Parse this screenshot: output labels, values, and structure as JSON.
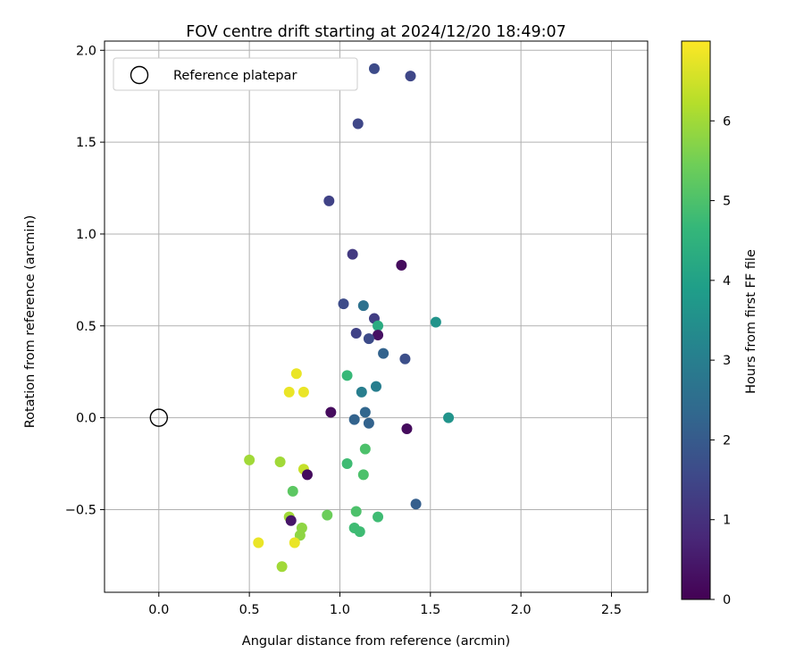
{
  "chart_data": {
    "type": "scatter",
    "title": "FOV centre drift starting at 2024/12/20 18:49:07",
    "xlabel": "Angular distance from reference (arcmin)",
    "ylabel": "Rotation from reference (arcmin)",
    "xlim": [
      -0.3,
      2.7
    ],
    "ylim": [
      -0.95,
      2.05
    ],
    "xticks": [
      0.0,
      0.5,
      1.0,
      1.5,
      2.0,
      2.5
    ],
    "xtick_labels": [
      "0.0",
      "0.5",
      "1.0",
      "1.5",
      "2.0",
      "2.5"
    ],
    "yticks": [
      -0.5,
      0.0,
      0.5,
      1.0,
      1.5,
      2.0
    ],
    "ytick_labels": [
      "−0.5",
      "0.0",
      "0.5",
      "1.0",
      "1.5",
      "2.0"
    ],
    "grid": true,
    "legend": {
      "placement": "top-left",
      "entries": [
        "Reference platepar"
      ]
    },
    "reference_point": {
      "x": 0.0,
      "y": 0.0,
      "label": "Reference platepar"
    },
    "colorbar": {
      "label": "Hours from first FF file",
      "colormap": "viridis",
      "range": [
        0,
        7
      ],
      "ticks": [
        0,
        1,
        2,
        3,
        4,
        5,
        6
      ],
      "tick_labels": [
        "0",
        "1",
        "2",
        "3",
        "4",
        "5",
        "6"
      ]
    },
    "colormap_stops": [
      "#440154",
      "#482878",
      "#3e4989",
      "#31688e",
      "#26828e",
      "#1f9e89",
      "#35b779",
      "#6ece58",
      "#b5de2b",
      "#fde725"
    ],
    "points": [
      {
        "x": 1.19,
        "y": 1.9,
        "hours": 1.6
      },
      {
        "x": 1.39,
        "y": 1.86,
        "hours": 1.5
      },
      {
        "x": 1.1,
        "y": 1.6,
        "hours": 1.5
      },
      {
        "x": 0.94,
        "y": 1.18,
        "hours": 1.4
      },
      {
        "x": 1.07,
        "y": 0.89,
        "hours": 1.2
      },
      {
        "x": 1.34,
        "y": 0.83,
        "hours": 0.2
      },
      {
        "x": 1.02,
        "y": 0.62,
        "hours": 1.6
      },
      {
        "x": 1.13,
        "y": 0.61,
        "hours": 2.6
      },
      {
        "x": 1.19,
        "y": 0.54,
        "hours": 1.3
      },
      {
        "x": 1.53,
        "y": 0.52,
        "hours": 3.6
      },
      {
        "x": 1.21,
        "y": 0.5,
        "hours": 4.3
      },
      {
        "x": 1.09,
        "y": 0.46,
        "hours": 1.4
      },
      {
        "x": 1.21,
        "y": 0.45,
        "hours": 0.3
      },
      {
        "x": 1.16,
        "y": 0.43,
        "hours": 1.6
      },
      {
        "x": 1.24,
        "y": 0.35,
        "hours": 2.2
      },
      {
        "x": 1.36,
        "y": 0.32,
        "hours": 1.7
      },
      {
        "x": 0.76,
        "y": 0.24,
        "hours": 6.8
      },
      {
        "x": 1.04,
        "y": 0.23,
        "hours": 4.7
      },
      {
        "x": 1.2,
        "y": 0.17,
        "hours": 3.0
      },
      {
        "x": 0.72,
        "y": 0.14,
        "hours": 6.8
      },
      {
        "x": 1.12,
        "y": 0.14,
        "hours": 3.0
      },
      {
        "x": 0.8,
        "y": 0.14,
        "hours": 6.8
      },
      {
        "x": 0.95,
        "y": 0.03,
        "hours": 0.2
      },
      {
        "x": 1.14,
        "y": 0.03,
        "hours": 2.3
      },
      {
        "x": 1.6,
        "y": 0.0,
        "hours": 3.6
      },
      {
        "x": 1.08,
        "y": -0.01,
        "hours": 2.2
      },
      {
        "x": 1.16,
        "y": -0.03,
        "hours": 2.2
      },
      {
        "x": 1.37,
        "y": -0.06,
        "hours": 0.2
      },
      {
        "x": 1.14,
        "y": -0.17,
        "hours": 5.0
      },
      {
        "x": 0.5,
        "y": -0.23,
        "hours": 6.0
      },
      {
        "x": 0.67,
        "y": -0.24,
        "hours": 6.0
      },
      {
        "x": 1.04,
        "y": -0.25,
        "hours": 4.8
      },
      {
        "x": 0.8,
        "y": -0.28,
        "hours": 6.4
      },
      {
        "x": 1.13,
        "y": -0.31,
        "hours": 5.0
      },
      {
        "x": 0.82,
        "y": -0.31,
        "hours": 0.2
      },
      {
        "x": 0.74,
        "y": -0.4,
        "hours": 5.2
      },
      {
        "x": 1.09,
        "y": -0.51,
        "hours": 5.0
      },
      {
        "x": 1.42,
        "y": -0.47,
        "hours": 2.1
      },
      {
        "x": 0.93,
        "y": -0.53,
        "hours": 5.4
      },
      {
        "x": 1.21,
        "y": -0.54,
        "hours": 4.8
      },
      {
        "x": 0.72,
        "y": -0.54,
        "hours": 6.0
      },
      {
        "x": 0.73,
        "y": -0.56,
        "hours": 0.4
      },
      {
        "x": 0.79,
        "y": -0.6,
        "hours": 5.8
      },
      {
        "x": 1.08,
        "y": -0.6,
        "hours": 4.8
      },
      {
        "x": 1.11,
        "y": -0.62,
        "hours": 4.8
      },
      {
        "x": 0.78,
        "y": -0.64,
        "hours": 5.8
      },
      {
        "x": 0.55,
        "y": -0.68,
        "hours": 6.8
      },
      {
        "x": 0.75,
        "y": -0.68,
        "hours": 6.8
      },
      {
        "x": 0.68,
        "y": -0.81,
        "hours": 6.0
      }
    ]
  }
}
